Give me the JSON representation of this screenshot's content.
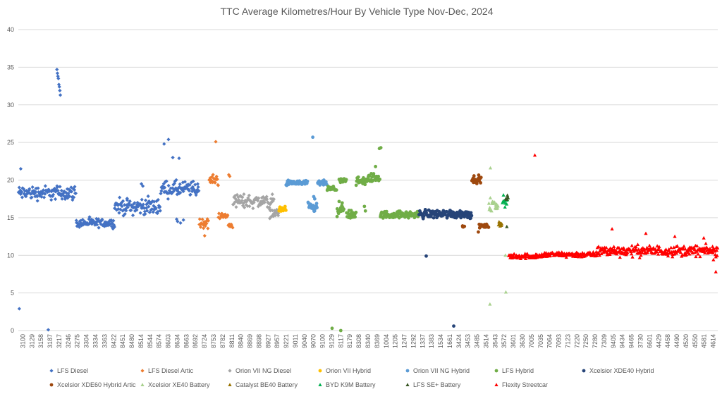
{
  "chart_data": {
    "type": "scatter",
    "title": "TTC Average Kilometres/Hour By Vehicle Type Nov-Dec, 2024",
    "xlabel": "",
    "ylabel": "",
    "ylim": [
      0,
      40
    ],
    "yticks": [
      0,
      5,
      10,
      15,
      20,
      25,
      30,
      35,
      40
    ],
    "grid": true,
    "legend_position": "bottom",
    "x_ticks": [
      "3100",
      "3129",
      "3158",
      "3187",
      "3217",
      "3246",
      "3275",
      "3304",
      "3334",
      "3363",
      "8422",
      "8451",
      "8480",
      "8514",
      "8544",
      "8574",
      "8603",
      "8634",
      "8663",
      "8692",
      "8724",
      "8753",
      "8782",
      "8811",
      "8840",
      "8869",
      "8898",
      "8927",
      "8957",
      "9221",
      "9011",
      "9040",
      "9070",
      "9100",
      "9129",
      "8117",
      "8179",
      "8308",
      "8340",
      "8369",
      "1004",
      "1205",
      "1247",
      "1292",
      "1337",
      "1383",
      "1534",
      "1661",
      "3424",
      "3453",
      "3485",
      "3514",
      "3543",
      "3572",
      "3601",
      "3630",
      "7005",
      "7035",
      "7064",
      "7093",
      "7123",
      "7220",
      "7250",
      "7280",
      "7309",
      "9405",
      "9434",
      "9465",
      "3730",
      "6601",
      "4429",
      "4458",
      "4490",
      "4520",
      "4550",
      "4581",
      "4614"
    ],
    "n_points": 1450,
    "series": [
      {
        "name": "LFS Diesel",
        "color": "#4472c4",
        "marker": "diamond",
        "segments": [
          {
            "start": 0,
            "end": 120,
            "mean": 18.3,
            "spread": 0.8,
            "outliers": [
              [
                5,
                21.5
              ],
              [
                2,
                2.9
              ],
              [
                62,
                0.1
              ],
              [
                80,
                34.7
              ],
              [
                81,
                34.2
              ],
              [
                82,
                33.8
              ],
              [
                83,
                33.5
              ],
              [
                84,
                32.7
              ],
              [
                85,
                32.4
              ],
              [
                86,
                31.9
              ],
              [
                87,
                31.3
              ]
            ]
          },
          {
            "start": 120,
            "end": 200,
            "mean": 14.3,
            "spread": 0.5,
            "outliers": []
          },
          {
            "start": 200,
            "end": 295,
            "mean": 16.5,
            "spread": 0.9,
            "outliers": [
              [
                255,
                19.5
              ],
              [
                258,
                19.2
              ]
            ]
          },
          {
            "start": 295,
            "end": 375,
            "mean": 18.8,
            "spread": 0.9,
            "outliers": [
              [
                302,
                24.8
              ],
              [
                311,
                25.4
              ],
              [
                320,
                23.0
              ],
              [
                333,
                22.9
              ],
              [
                328,
                14.8
              ],
              [
                330,
                14.5
              ],
              [
                336,
                14.3
              ],
              [
                342,
                14.7
              ]
            ]
          }
        ]
      },
      {
        "name": "LFS Diesel Artic",
        "color": "#ed7d31",
        "marker": "diamond",
        "segments": [
          {
            "start": 375,
            "end": 395,
            "mean": 14.3,
            "spread": 0.6,
            "outliers": [
              [
                386,
                12.6
              ]
            ]
          },
          {
            "start": 395,
            "end": 415,
            "mean": 20.0,
            "spread": 0.6,
            "outliers": [
              [
                409,
                25.1
              ]
            ]
          },
          {
            "start": 415,
            "end": 435,
            "mean": 15.2,
            "spread": 0.4,
            "outliers": []
          },
          {
            "start": 435,
            "end": 445,
            "mean": 14.0,
            "spread": 0.3,
            "outliers": [
              [
                436,
                20.7
              ],
              [
                438,
                20.5
              ]
            ]
          }
        ]
      },
      {
        "name": "Orion VII NG Diesel",
        "color": "#a5a5a5",
        "marker": "diamond",
        "segments": [
          {
            "start": 445,
            "end": 530,
            "mean": 17.2,
            "spread": 0.8,
            "outliers": []
          },
          {
            "start": 520,
            "end": 540,
            "mean": 15.6,
            "spread": 0.5,
            "outliers": []
          }
        ]
      },
      {
        "name": "Orion VII Hybrid",
        "color": "#ffc000",
        "marker": "circle",
        "segments": [
          {
            "start": 540,
            "end": 555,
            "mean": 16.1,
            "spread": 0.4,
            "outliers": []
          }
        ]
      },
      {
        "name": "Orion VII NG Hybrid",
        "color": "#5b9bd5",
        "marker": "circle",
        "segments": [
          {
            "start": 555,
            "end": 600,
            "mean": 19.6,
            "spread": 0.3,
            "outliers": []
          },
          {
            "start": 600,
            "end": 620,
            "mean": 16.3,
            "spread": 0.6,
            "outliers": [
              [
                610,
                25.7
              ],
              [
                612,
                17.8
              ],
              [
                614,
                17.5
              ]
            ]
          },
          {
            "start": 620,
            "end": 640,
            "mean": 19.6,
            "spread": 0.3,
            "outliers": []
          }
        ]
      },
      {
        "name": "LFS Hybrid",
        "color": "#70ad47",
        "marker": "circle",
        "segments": [
          {
            "start": 640,
            "end": 660,
            "mean": 18.8,
            "spread": 0.3,
            "outliers": [
              [
                650,
                0.3
              ]
            ]
          },
          {
            "start": 660,
            "end": 675,
            "mean": 16.0,
            "spread": 0.8,
            "outliers": [
              [
                668,
                0.0
              ]
            ]
          },
          {
            "start": 665,
            "end": 680,
            "mean": 19.9,
            "spread": 0.3,
            "outliers": []
          },
          {
            "start": 680,
            "end": 700,
            "mean": 15.5,
            "spread": 0.6,
            "outliers": []
          },
          {
            "start": 700,
            "end": 725,
            "mean": 19.8,
            "spread": 0.5,
            "outliers": [
              [
                717,
                16.5
              ],
              [
                719,
                15.9
              ]
            ]
          },
          {
            "start": 725,
            "end": 750,
            "mean": 20.3,
            "spread": 0.5,
            "outliers": [
              [
                740,
                21.8
              ],
              [
                748,
                24.2
              ],
              [
                751,
                24.3
              ]
            ]
          },
          {
            "start": 750,
            "end": 830,
            "mean": 15.4,
            "spread": 0.4,
            "outliers": []
          }
        ]
      },
      {
        "name": "Xcelsior XDE40 Hybrid",
        "color": "#264478",
        "marker": "circle",
        "segments": [
          {
            "start": 830,
            "end": 940,
            "mean": 15.5,
            "spread": 0.5,
            "outliers": [
              [
                845,
                9.9
              ],
              [
                902,
                0.6
              ]
            ]
          }
        ]
      },
      {
        "name": "Xcelsior XDE60 Hybrid Artic",
        "color": "#9e480e",
        "marker": "circle",
        "segments": [
          {
            "start": 940,
            "end": 960,
            "mean": 20.1,
            "spread": 0.4,
            "outliers": []
          },
          {
            "start": 920,
            "end": 925,
            "mean": 13.8,
            "spread": 0.1,
            "outliers": []
          },
          {
            "start": 955,
            "end": 975,
            "mean": 13.9,
            "spread": 0.2,
            "outliers": [
              [
                953,
                13.1
              ]
            ]
          }
        ]
      },
      {
        "name": "Xcelsior XE40 Battery",
        "color": "#a9d18e",
        "marker": "triangle",
        "segments": [
          {
            "start": 975,
            "end": 995,
            "mean": 16.6,
            "spread": 0.9,
            "outliers": [
              [
                978,
                21.6
              ],
              [
                977,
                3.5
              ],
              [
                1010,
                5.1
              ],
              [
                1009,
                10.0
              ]
            ]
          }
        ]
      },
      {
        "name": "Catalyst BE40 Battery",
        "color": "#997300",
        "marker": "triangle",
        "segments": [
          {
            "start": 995,
            "end": 1003,
            "mean": 14.2,
            "spread": 0.3,
            "outliers": []
          }
        ]
      },
      {
        "name": "BYD K9M Battery",
        "color": "#00b050",
        "marker": "triangle",
        "segments": [
          {
            "start": 1003,
            "end": 1015,
            "mean": 17.0,
            "spread": 0.5,
            "outliers": [
              [
                1005,
                18.0
              ]
            ]
          }
        ]
      },
      {
        "name": "LFS SE+ Battery",
        "color": "#375623",
        "marker": "triangle",
        "segments": [
          {
            "start": 1010,
            "end": 1016,
            "mean": 17.6,
            "spread": 0.3,
            "outliers": [
              [
                1012,
                13.8
              ]
            ]
          }
        ]
      },
      {
        "name": "Flexity Streetcar",
        "color": "#ff0000",
        "marker": "triangle",
        "segments": [
          {
            "start": 1016,
            "end": 1090,
            "mean": 9.9,
            "spread": 0.3,
            "outliers": [
              [
                1070,
                23.3
              ]
            ]
          },
          {
            "start": 1090,
            "end": 1200,
            "mean": 10.1,
            "spread": 0.3,
            "outliers": []
          },
          {
            "start": 1200,
            "end": 1450,
            "mean": 10.6,
            "spread": 0.6,
            "outliers": [
              [
                1230,
                13.5
              ],
              [
                1300,
                12.9
              ],
              [
                1360,
                12.5
              ],
              [
                1420,
                12.3
              ],
              [
                1445,
                7.8
              ],
              [
                1440,
                9.4
              ]
            ]
          }
        ]
      }
    ]
  }
}
